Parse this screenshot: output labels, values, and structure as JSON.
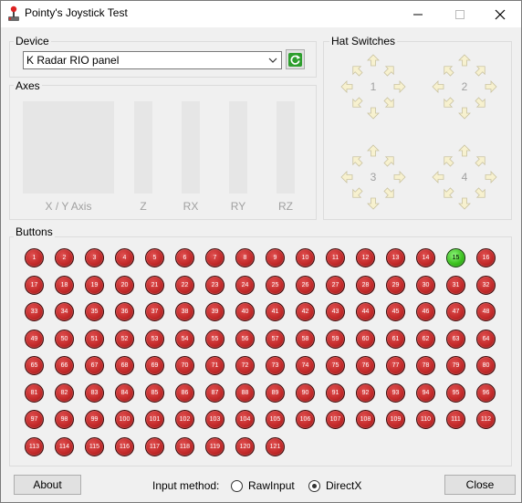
{
  "window": {
    "title": "Pointy's Joystick Test"
  },
  "device": {
    "group_label": "Device",
    "selected": "K Radar RIO panel"
  },
  "axes": {
    "group_label": "Axes",
    "labels": [
      "X / Y Axis",
      "Z",
      "RX",
      "RY",
      "RZ"
    ]
  },
  "hats": {
    "group_label": "Hat Switches",
    "labels": [
      "1",
      "2",
      "3",
      "4"
    ]
  },
  "buttons": {
    "group_label": "Buttons",
    "count": 121,
    "pressed": [
      15
    ],
    "colors": {
      "off": "#c42b2b",
      "on": "#3cc21f"
    }
  },
  "footer": {
    "about_label": "About",
    "input_method_label": "Input method:",
    "raw_input_label": "RawInput",
    "directx_label": "DirectX",
    "selected_method": "DirectX",
    "close_label": "Close"
  },
  "icons": {
    "app": "joystick-icon",
    "refresh": "refresh-icon",
    "minimize": "minimize-icon",
    "maximize": "maximize-icon",
    "close": "close-icon"
  }
}
